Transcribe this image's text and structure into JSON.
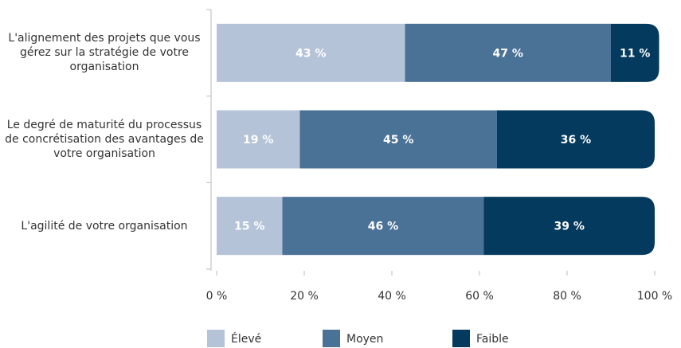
{
  "chart_data": {
    "type": "stacked-bar-horizontal",
    "categories": [
      "L'alignement des projets que vous gérez sur la stratégie de votre organisation",
      "Le degré de maturité du processus de concrétisation des avantages de votre organisation",
      "L'agilité de votre organisation"
    ],
    "series": [
      {
        "name": "Élevé",
        "color": "#b4c3d8",
        "values": [
          43,
          19,
          15
        ],
        "value_labels": [
          "43 %",
          "19 %",
          "15 %"
        ]
      },
      {
        "name": "Moyen",
        "color": "#4a7196",
        "values": [
          47,
          45,
          46
        ],
        "value_labels": [
          "47 %",
          "45 %",
          "46 %"
        ]
      },
      {
        "name": "Faible",
        "color": "#033a5e",
        "values": [
          11,
          36,
          39
        ],
        "value_labels": [
          "11 %",
          "36 %",
          "39 %"
        ]
      }
    ],
    "xlim": [
      0,
      100
    ],
    "xticks": [
      {
        "value": 0,
        "label": "0 %"
      },
      {
        "value": 20,
        "label": "20 %"
      },
      {
        "value": 40,
        "label": "40 %"
      },
      {
        "value": 60,
        "label": "60 %"
      },
      {
        "value": 80,
        "label": "80 %"
      },
      {
        "value": 100,
        "label": "100 %"
      }
    ]
  }
}
